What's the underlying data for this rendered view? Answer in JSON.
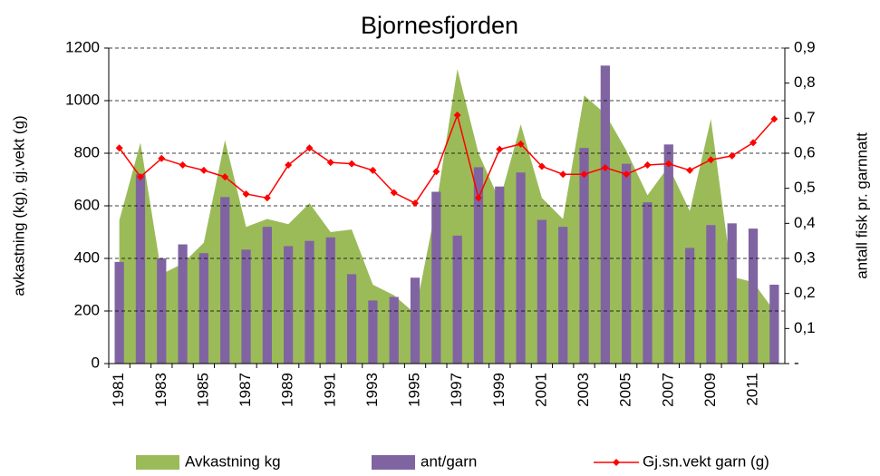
{
  "chart_data": {
    "type": "combo",
    "title": "Bjornesfjorden",
    "y_label": "avkastning (kg), gj.vekt (g)",
    "y2_label": "antall fisk pr. garnnatt",
    "categories": [
      "1981",
      null,
      "1983",
      null,
      "1985",
      null,
      "1987",
      null,
      "1989",
      null,
      "1991",
      null,
      "1993",
      null,
      "1995",
      null,
      "1997",
      null,
      "1999",
      null,
      "2001",
      null,
      "2003",
      null,
      "2005",
      null,
      "2007",
      null,
      "2009",
      null,
      "2011",
      null
    ],
    "ylim": [
      0,
      1200
    ],
    "yticks": [
      0,
      200,
      400,
      600,
      800,
      1000,
      1200
    ],
    "y2lim": [
      0,
      0.9
    ],
    "y2ticks": [
      {
        "value": 0,
        "label": "-"
      },
      {
        "value": 0.1,
        "label": "0,1"
      },
      {
        "value": 0.2,
        "label": "0,2"
      },
      {
        "value": 0.3,
        "label": "0,3"
      },
      {
        "value": 0.4,
        "label": "0,4"
      },
      {
        "value": 0.5,
        "label": "0,5"
      },
      {
        "value": 0.6,
        "label": "0,6"
      },
      {
        "value": 0.7,
        "label": "0,7"
      },
      {
        "value": 0.8,
        "label": "0,8"
      },
      {
        "value": 0.9,
        "label": "0,9"
      }
    ],
    "grid": true,
    "legend": "bottom",
    "series": [
      {
        "name": "Avkastning kg",
        "type": "area",
        "color": "#9bbb59",
        "values": [
          545,
          840,
          340,
          380,
          460,
          850,
          520,
          550,
          530,
          610,
          500,
          510,
          300,
          260,
          190,
          600,
          1120,
          800,
          620,
          910,
          630,
          550,
          1020,
          950,
          810,
          640,
          750,
          580,
          930,
          330,
          310,
          200
        ]
      },
      {
        "name": "ant/garn",
        "type": "bar",
        "axis": "y2",
        "color": "#8064a2",
        "values": [
          0.29,
          0.54,
          0.3,
          0.34,
          0.315,
          0.475,
          0.325,
          0.39,
          0.335,
          0.35,
          0.36,
          0.255,
          0.18,
          0.19,
          0.245,
          0.49,
          0.365,
          0.56,
          0.505,
          0.545,
          0.41,
          0.39,
          0.615,
          0.85,
          0.57,
          0.46,
          0.625,
          0.33,
          0.395,
          0.4,
          0.385,
          0.225
        ]
      },
      {
        "name": "Gj.sn.vekt garn (g)",
        "type": "line",
        "color": "#ff0000",
        "values": [
          820,
          710,
          780,
          755,
          735,
          710,
          645,
          630,
          755,
          820,
          765,
          760,
          735,
          650,
          610,
          730,
          945,
          630,
          815,
          835,
          750,
          720,
          720,
          745,
          720,
          755,
          760,
          735,
          775,
          790,
          840,
          930
        ]
      }
    ]
  }
}
